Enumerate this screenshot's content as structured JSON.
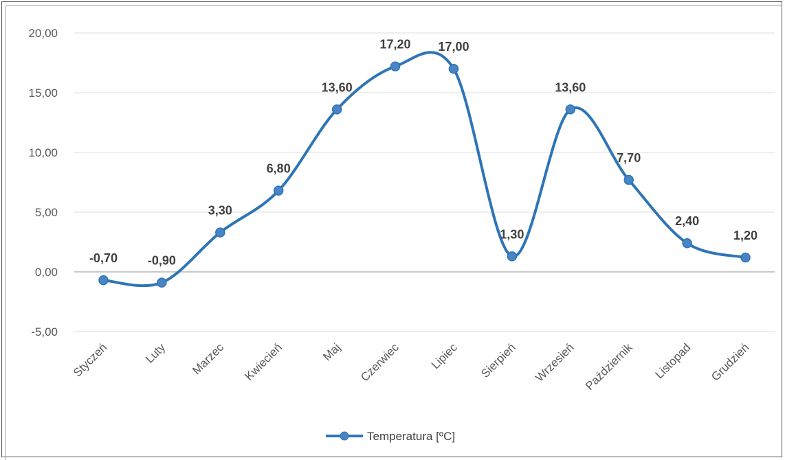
{
  "chart_data": {
    "type": "line",
    "smooth": true,
    "categories": [
      "Styczeń",
      "Luty",
      "Marzec",
      "Kwiecień",
      "Maj",
      "Czerwiec",
      "Lipiec",
      "Sierpień",
      "Wrzesień",
      "Październik",
      "Listopad",
      "Grudzień"
    ],
    "series": [
      {
        "name": "Temperatura [ºC]",
        "values": [
          -0.7,
          -0.9,
          3.3,
          6.8,
          13.6,
          17.2,
          17.0,
          1.3,
          13.6,
          7.7,
          2.4,
          1.2
        ],
        "labels": [
          "-0,70",
          "-0,90",
          "3,30",
          "6,80",
          "13,60",
          "17,20",
          "17,00",
          "1,30",
          "13,60",
          "7,70",
          "2,40",
          "1,20"
        ],
        "color": "#2e75b6",
        "marker_color": "#4a84c4"
      }
    ],
    "ylim": [
      -5,
      20
    ],
    "yticks": [
      -5,
      0,
      5,
      10,
      15,
      20
    ],
    "ytick_labels": [
      "-5,00",
      "0,00",
      "5,00",
      "10,00",
      "15,00",
      "20,00"
    ],
    "grid": true,
    "legend": "bottom"
  }
}
